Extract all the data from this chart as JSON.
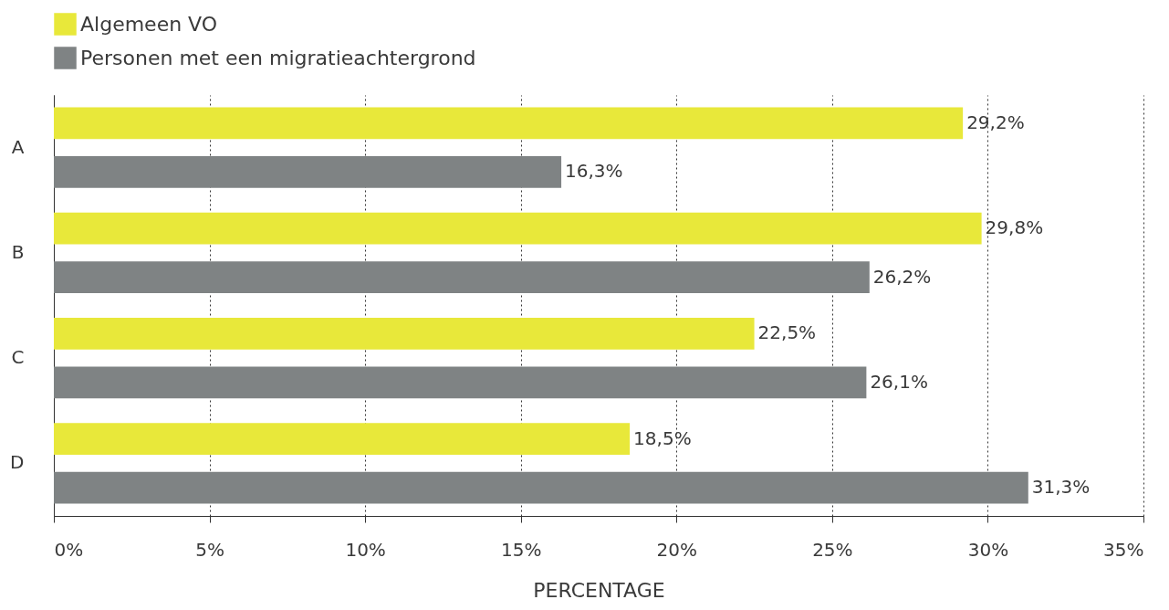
{
  "chart_data": {
    "type": "bar",
    "orientation": "horizontal",
    "categories": [
      "A",
      "B",
      "C",
      "D"
    ],
    "series": [
      {
        "name": "Algemeen VO",
        "color": "#e8e83a",
        "values": [
          29.2,
          29.8,
          22.5,
          18.5
        ],
        "value_labels": [
          "29,2%",
          "29,8%",
          "22,5%",
          "18,5%"
        ]
      },
      {
        "name": "Personen met een migratieachtergrond",
        "color": "#7f8384",
        "values": [
          16.3,
          26.2,
          26.1,
          31.3
        ],
        "value_labels": [
          "16,3%",
          "26,2%",
          "26,1%",
          "31,3%"
        ]
      }
    ],
    "xlim": [
      0,
      35
    ],
    "xticks": [
      {
        "value": 0,
        "label": "0%"
      },
      {
        "value": 5,
        "label": "5%"
      },
      {
        "value": 10,
        "label": "10%"
      },
      {
        "value": 15,
        "label": "15%"
      },
      {
        "value": 20,
        "label": "20%"
      },
      {
        "value": 25,
        "label": "25%"
      },
      {
        "value": 30,
        "label": "30%"
      },
      {
        "value": 35,
        "label": "35%"
      }
    ],
    "xlabel": "PERCENTAGE",
    "grid": "x",
    "legend": "top left"
  }
}
